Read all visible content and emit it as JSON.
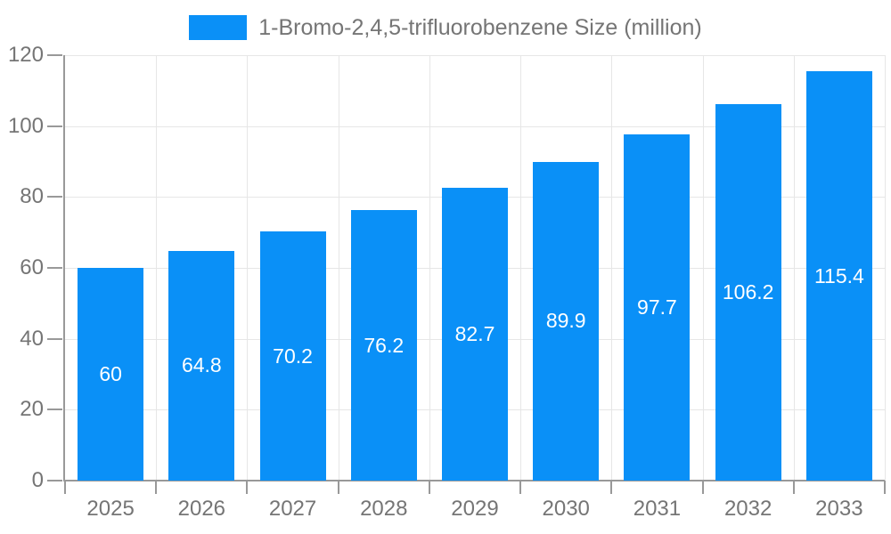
{
  "chart_data": {
    "type": "bar",
    "title": "1-Bromo-2,4,5-trifluorobenzene Size (million)",
    "categories": [
      "2025",
      "2026",
      "2027",
      "2028",
      "2029",
      "2030",
      "2031",
      "2032",
      "2033"
    ],
    "values": [
      60,
      64.8,
      70.2,
      76.2,
      82.7,
      89.9,
      97.7,
      106.2,
      115.4
    ],
    "bar_labels": [
      "60",
      "64.8",
      "70.2",
      "76.2",
      "82.7",
      "89.9",
      "97.7",
      "106.2",
      "115.4"
    ],
    "xlabel": "",
    "ylabel": "",
    "ylim": [
      0,
      120
    ],
    "ytick_step": 20,
    "ytick_labels": [
      "0",
      "20",
      "40",
      "60",
      "80",
      "100",
      "120"
    ],
    "grid": true,
    "legend_position": "top",
    "colors": {
      "bar": "#0a90f7",
      "bar_label_text": "#ffffff",
      "gridline": "#e6e6e6",
      "axis_line": "#999999",
      "tick_label": "#757575",
      "legend_text": "#757575",
      "background": "#ffffff"
    }
  }
}
